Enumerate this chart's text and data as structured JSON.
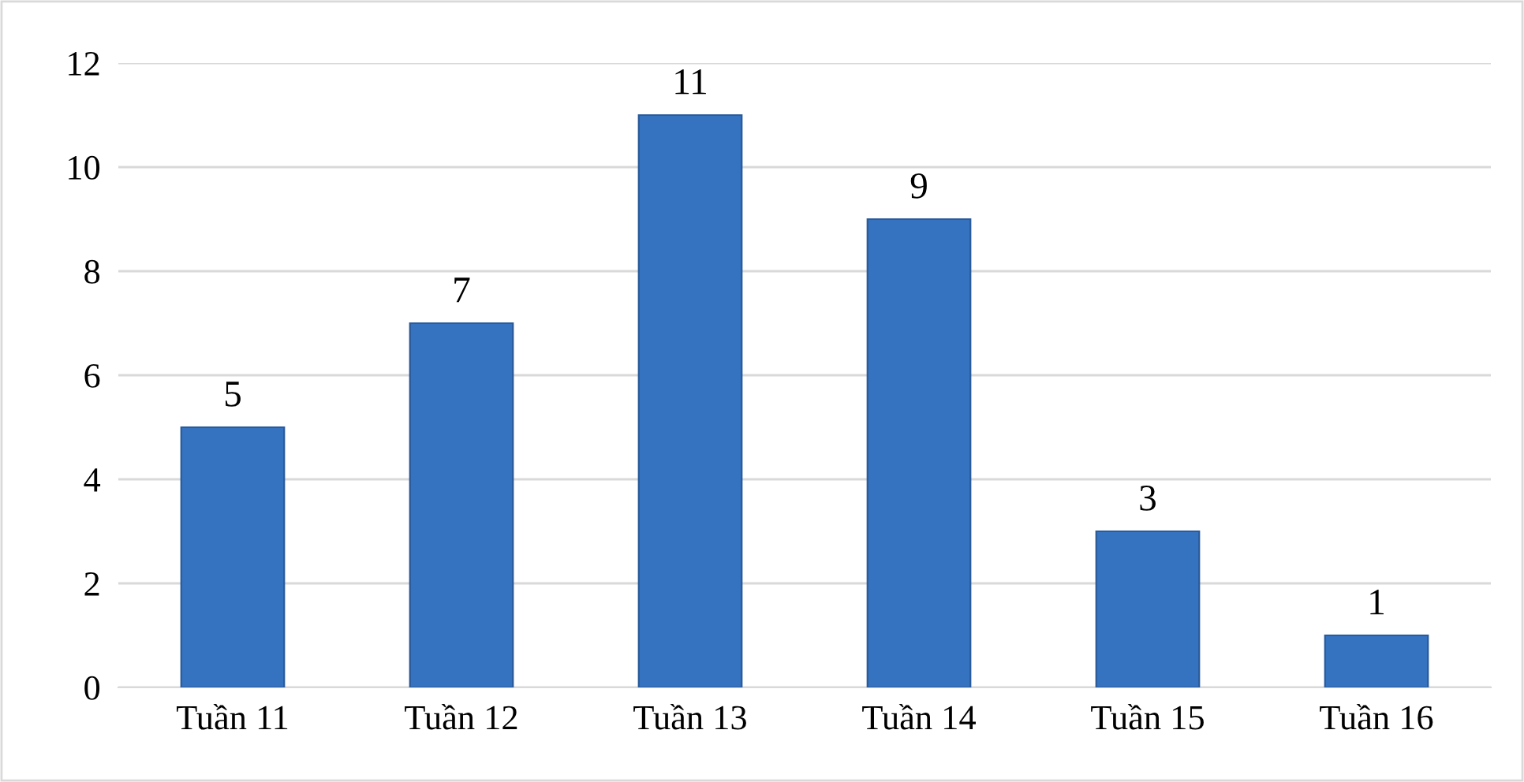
{
  "chart_data": {
    "type": "bar",
    "categories": [
      "Tuần 11",
      "Tuần 12",
      "Tuần 13",
      "Tuần 14",
      "Tuần 15",
      "Tuần 16"
    ],
    "values": [
      5,
      7,
      11,
      9,
      3,
      1
    ],
    "color": "#3572c0",
    "ylim": [
      0,
      12
    ],
    "yticks": [
      0,
      2,
      4,
      6,
      8,
      10,
      12
    ],
    "grid": "y",
    "data_labels": true,
    "legend": false
  }
}
